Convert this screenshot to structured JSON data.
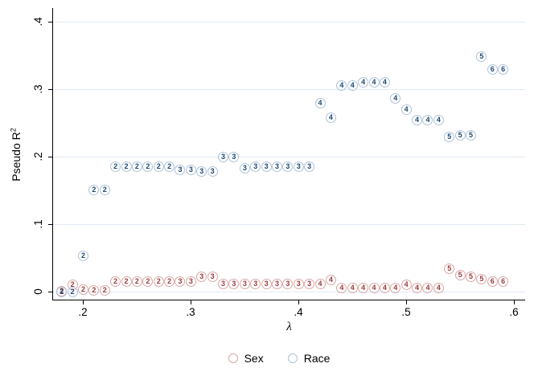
{
  "figure": {
    "background": "#ffffff",
    "axis_color": "#000000",
    "gridline_color": "#e2eaf4"
  },
  "chart_data": {
    "type": "scatter",
    "title": "",
    "xlabel": "λ",
    "ylabel": "Pseudo R²",
    "marker_shape": "circle-with-number",
    "grid": true,
    "legend_position": "bottom-center",
    "x_axis": {
      "range": [
        0.172,
        0.6104
      ],
      "tick_values": [
        0.2,
        0.3,
        0.4,
        0.5,
        0.6
      ],
      "tick_labels": [
        ".2",
        ".3",
        ".4",
        ".5",
        ".6"
      ]
    },
    "y_axis": {
      "range": [
        -0.0113,
        0.4203
      ],
      "tick_values": [
        0,
        0.1,
        0.2,
        0.3,
        0.4
      ],
      "tick_labels": [
        "0",
        ".1",
        ".2",
        ".3",
        ".4"
      ]
    },
    "series": [
      {
        "name": "Sex",
        "outline_color": "#d9a7a7",
        "number_color": "#9c3a3a",
        "points": [
          [
            0.18,
            "2",
            0.001
          ],
          [
            0.19,
            "2",
            0.011
          ],
          [
            0.2,
            "2",
            0.004
          ],
          [
            0.21,
            "2",
            0.002
          ],
          [
            0.22,
            "2",
            0.002
          ],
          [
            0.23,
            "2",
            0.016
          ],
          [
            0.24,
            "2",
            0.016
          ],
          [
            0.25,
            "2",
            0.016
          ],
          [
            0.26,
            "2",
            0.016
          ],
          [
            0.27,
            "2",
            0.016
          ],
          [
            0.28,
            "2",
            0.016
          ],
          [
            0.29,
            "3",
            0.016
          ],
          [
            0.3,
            "3",
            0.016
          ],
          [
            0.31,
            "3",
            0.022
          ],
          [
            0.32,
            "3",
            0.022
          ],
          [
            0.33,
            "3",
            0.012
          ],
          [
            0.34,
            "3",
            0.012
          ],
          [
            0.35,
            "3",
            0.012
          ],
          [
            0.36,
            "3",
            0.012
          ],
          [
            0.37,
            "3",
            0.012
          ],
          [
            0.38,
            "3",
            0.012
          ],
          [
            0.39,
            "3",
            0.012
          ],
          [
            0.4,
            "3",
            0.012
          ],
          [
            0.41,
            "3",
            0.012
          ],
          [
            0.42,
            "4",
            0.012
          ],
          [
            0.43,
            "4",
            0.018
          ],
          [
            0.44,
            "4",
            0.006
          ],
          [
            0.45,
            "4",
            0.006
          ],
          [
            0.46,
            "4",
            0.006
          ],
          [
            0.47,
            "4",
            0.006
          ],
          [
            0.48,
            "4",
            0.006
          ],
          [
            0.49,
            "4",
            0.006
          ],
          [
            0.5,
            "4",
            0.011
          ],
          [
            0.51,
            "4",
            0.006
          ],
          [
            0.52,
            "4",
            0.006
          ],
          [
            0.53,
            "4",
            0.006
          ],
          [
            0.54,
            "5",
            0.034
          ],
          [
            0.55,
            "5",
            0.025
          ],
          [
            0.56,
            "5",
            0.023
          ],
          [
            0.57,
            "5",
            0.019
          ],
          [
            0.58,
            "6",
            0.016
          ],
          [
            0.59,
            "6",
            0.016
          ]
        ]
      },
      {
        "name": "Race",
        "outline_color": "#aec3d9",
        "number_color": "#1f4874",
        "points": [
          [
            0.18,
            "2",
            0.0
          ],
          [
            0.19,
            "2",
            0.0
          ],
          [
            0.2,
            "2",
            0.054
          ],
          [
            0.21,
            "2",
            0.151
          ],
          [
            0.22,
            "2",
            0.151
          ],
          [
            0.23,
            "2",
            0.186
          ],
          [
            0.24,
            "2",
            0.186
          ],
          [
            0.25,
            "2",
            0.186
          ],
          [
            0.26,
            "2",
            0.186
          ],
          [
            0.27,
            "2",
            0.186
          ],
          [
            0.28,
            "2",
            0.186
          ],
          [
            0.29,
            "3",
            0.181
          ],
          [
            0.3,
            "3",
            0.181
          ],
          [
            0.31,
            "3",
            0.178
          ],
          [
            0.32,
            "3",
            0.178
          ],
          [
            0.33,
            "3",
            0.2
          ],
          [
            0.34,
            "3",
            0.2
          ],
          [
            0.35,
            "3",
            0.183
          ],
          [
            0.36,
            "3",
            0.185
          ],
          [
            0.37,
            "3",
            0.185
          ],
          [
            0.38,
            "3",
            0.185
          ],
          [
            0.39,
            "3",
            0.185
          ],
          [
            0.4,
            "3",
            0.185
          ],
          [
            0.41,
            "3",
            0.185
          ],
          [
            0.42,
            "4",
            0.28
          ],
          [
            0.43,
            "4",
            0.258
          ],
          [
            0.44,
            "4",
            0.305
          ],
          [
            0.45,
            "4",
            0.305
          ],
          [
            0.46,
            "4",
            0.31
          ],
          [
            0.47,
            "4",
            0.31
          ],
          [
            0.48,
            "4",
            0.31
          ],
          [
            0.49,
            "4",
            0.286
          ],
          [
            0.5,
            "4",
            0.27
          ],
          [
            0.51,
            "4",
            0.255
          ],
          [
            0.52,
            "4",
            0.255
          ],
          [
            0.53,
            "4",
            0.255
          ],
          [
            0.54,
            "5",
            0.229
          ],
          [
            0.55,
            "5",
            0.232
          ],
          [
            0.56,
            "5",
            0.232
          ],
          [
            0.57,
            "5",
            0.348
          ],
          [
            0.58,
            "6",
            0.329
          ],
          [
            0.59,
            "6",
            0.329
          ]
        ]
      }
    ],
    "legend": {
      "items": [
        {
          "label": "Sex"
        },
        {
          "label": "Race"
        }
      ]
    }
  }
}
